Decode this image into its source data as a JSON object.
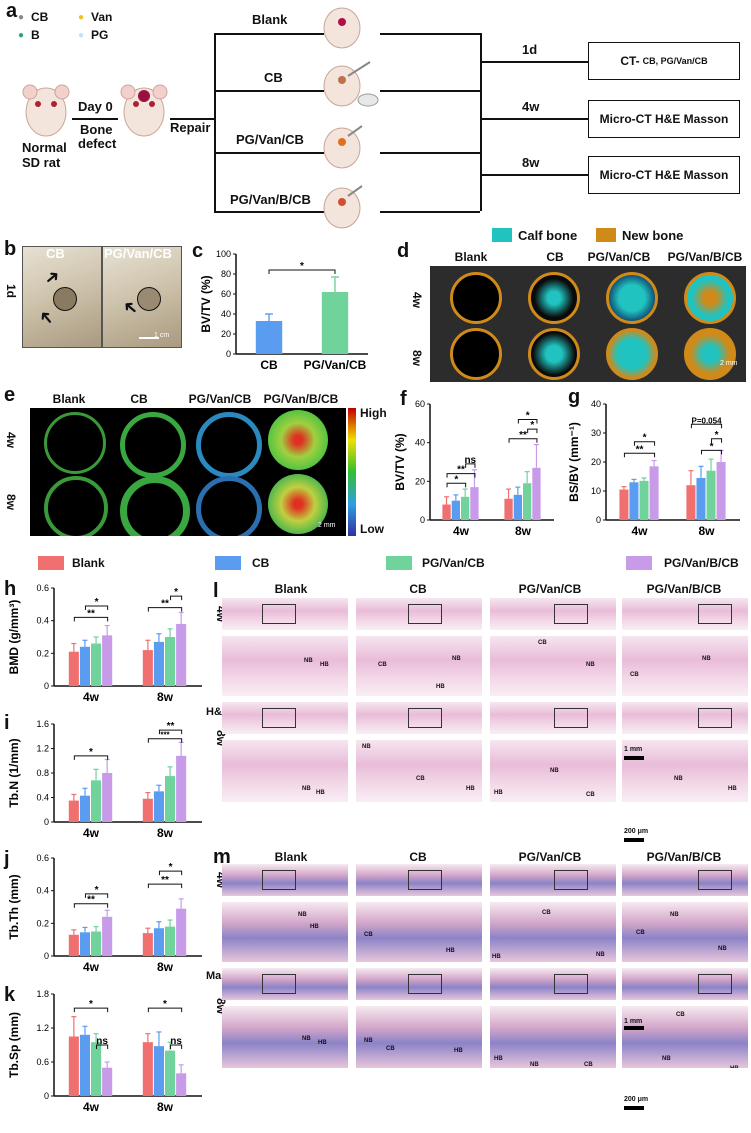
{
  "panels": {
    "a": "a",
    "b": "b",
    "c": "c",
    "d": "d",
    "e": "e",
    "f": "f",
    "g": "g",
    "h": "h",
    "i": "i",
    "j": "j",
    "k": "k",
    "l": "l",
    "m": "m"
  },
  "scheme": {
    "legend": [
      "CB",
      "Van",
      "B",
      "PG"
    ],
    "day0": "Day 0",
    "bone_defect_1": "Bone",
    "bone_defect_2": "defect",
    "normal_1": "Normal",
    "normal_2": "SD rat",
    "repair": "Repair",
    "groups": [
      "Blank",
      "CB",
      "PG/Van/CB",
      "PG/Van/B/CB"
    ],
    "times": [
      "1d",
      "4w",
      "8w"
    ],
    "box1_main": "CT-",
    "box1_sub": "CB, PG/Van/CB",
    "box2": "Micro-CT H&E Masson",
    "box3": "Micro-CT H&E Masson"
  },
  "panel_b": {
    "labels": [
      "CB",
      "PG/Van/CB"
    ],
    "row": "1d",
    "scale": "1 cm"
  },
  "panel_d": {
    "legend": [
      "Calf bone",
      "New bone"
    ],
    "legend_colors": [
      "#21c3c0",
      "#d08a1a"
    ],
    "cols": [
      "Blank",
      "CB",
      "PG/Van/CB",
      "PG/Van/B/CB"
    ],
    "rows": [
      "4w",
      "8w"
    ],
    "scale": "2 mm"
  },
  "panel_e": {
    "cols": [
      "Blank",
      "CB",
      "PG/Van/CB",
      "PG/Van/B/CB"
    ],
    "rows": [
      "4w",
      "8w"
    ],
    "high": "High",
    "low": "Low",
    "scale": "2 mm"
  },
  "group_legend": {
    "items": [
      "Blank",
      "CB",
      "PG/Van/CB",
      "PG/Van/B/CB"
    ],
    "colors": [
      "#f07070",
      "#5a9cf0",
      "#6fd39b",
      "#c79be8"
    ]
  },
  "panel_l": {
    "cols": [
      "Blank",
      "CB",
      "PG/Van/CB",
      "PG/Van/B/CB"
    ],
    "side": [
      "4w",
      "H&E",
      "8w"
    ],
    "scale1": "1 mm",
    "scale2": "200 μm",
    "tags": {
      "nb": "NB",
      "hb": "HB",
      "cb": "CB"
    }
  },
  "panel_m": {
    "cols": [
      "Blank",
      "CB",
      "PG/Van/CB",
      "PG/Van/B/CB"
    ],
    "side": [
      "4w",
      "Masson",
      "8w"
    ],
    "scale1": "1 mm",
    "scale2": "200 μm"
  },
  "chart_data": [
    {
      "id": "c",
      "type": "bar",
      "categories": [
        "CB",
        "PG/Van/CB"
      ],
      "values": [
        33,
        62
      ],
      "errors": [
        7,
        15
      ],
      "ylabel": "BV/TV (%)",
      "ylim": [
        0,
        100
      ],
      "yticks": [
        0,
        20,
        40,
        60,
        80,
        100
      ],
      "sig": [
        "*"
      ],
      "colors": [
        "#5a9cf0",
        "#6fd39b"
      ]
    },
    {
      "id": "f",
      "type": "bar",
      "categories": [
        "4w",
        "8w"
      ],
      "series": [
        {
          "values": [
            8,
            11
          ],
          "errors": [
            4,
            5
          ]
        },
        {
          "values": [
            10,
            13
          ],
          "errors": [
            3,
            4
          ]
        },
        {
          "values": [
            12,
            19
          ],
          "errors": [
            4,
            6
          ]
        },
        {
          "values": [
            17,
            27
          ],
          "errors": [
            9,
            12
          ]
        }
      ],
      "ylabel": "BV/TV (%)",
      "ylim": [
        0,
        60
      ],
      "yticks": [
        0,
        20,
        40,
        60
      ],
      "sig": [
        "*",
        "**",
        "ns",
        "*",
        "**",
        "*"
      ]
    },
    {
      "id": "g",
      "type": "bar",
      "categories": [
        "4w",
        "8w"
      ],
      "series": [
        {
          "values": [
            10.5,
            12
          ],
          "errors": [
            1,
            5
          ]
        },
        {
          "values": [
            13,
            14.5
          ],
          "errors": [
            1,
            4
          ]
        },
        {
          "values": [
            13.5,
            17
          ],
          "errors": [
            1,
            4
          ]
        },
        {
          "values": [
            18.5,
            20
          ],
          "errors": [
            2,
            4
          ]
        }
      ],
      "ylabel": "BS/BV (mm⁻¹)",
      "ylim": [
        0,
        40
      ],
      "yticks": [
        0,
        10,
        20,
        30,
        40
      ],
      "sig": [
        "**",
        "*",
        "*",
        "*",
        "P=0.054"
      ]
    },
    {
      "id": "h",
      "type": "bar",
      "categories": [
        "4w",
        "8w"
      ],
      "series": [
        {
          "values": [
            0.21,
            0.22
          ],
          "errors": [
            0.05,
            0.06
          ]
        },
        {
          "values": [
            0.24,
            0.27
          ],
          "errors": [
            0.04,
            0.05
          ]
        },
        {
          "values": [
            0.26,
            0.3
          ],
          "errors": [
            0.04,
            0.05
          ]
        },
        {
          "values": [
            0.31,
            0.38
          ],
          "errors": [
            0.06,
            0.07
          ]
        }
      ],
      "ylabel": "BMD (g/mm³)",
      "ylim": [
        0,
        0.6
      ],
      "yticks": [
        0,
        0.2,
        0.4,
        0.6
      ],
      "sig": [
        "**",
        "*",
        "**",
        "*"
      ]
    },
    {
      "id": "i",
      "type": "bar",
      "categories": [
        "4w",
        "8w"
      ],
      "series": [
        {
          "values": [
            0.35,
            0.38
          ],
          "errors": [
            0.1,
            0.1
          ]
        },
        {
          "values": [
            0.43,
            0.5
          ],
          "errors": [
            0.12,
            0.1
          ]
        },
        {
          "values": [
            0.68,
            0.75
          ],
          "errors": [
            0.18,
            0.15
          ]
        },
        {
          "values": [
            0.8,
            1.08
          ],
          "errors": [
            0.22,
            0.22
          ]
        }
      ],
      "ylabel": "Tb.N (1/mm)",
      "ylim": [
        0,
        1.6
      ],
      "yticks": [
        0,
        0.4,
        0.8,
        1.2,
        1.6
      ],
      "sig": [
        "*",
        "***",
        "**"
      ]
    },
    {
      "id": "j",
      "type": "bar",
      "categories": [
        "4w",
        "8w"
      ],
      "series": [
        {
          "values": [
            0.13,
            0.14
          ],
          "errors": [
            0.03,
            0.03
          ]
        },
        {
          "values": [
            0.145,
            0.17
          ],
          "errors": [
            0.03,
            0.04
          ]
        },
        {
          "values": [
            0.15,
            0.18
          ],
          "errors": [
            0.03,
            0.04
          ]
        },
        {
          "values": [
            0.24,
            0.29
          ],
          "errors": [
            0.04,
            0.06
          ]
        }
      ],
      "ylabel": "Tb.Th (mm)",
      "ylim": [
        0,
        0.6
      ],
      "yticks": [
        0,
        0.2,
        0.4,
        0.6
      ],
      "sig": [
        "**",
        "*",
        "**",
        "*"
      ]
    },
    {
      "id": "k",
      "type": "bar",
      "categories": [
        "4w",
        "8w"
      ],
      "series": [
        {
          "values": [
            1.05,
            0.95
          ],
          "errors": [
            0.35,
            0.15
          ]
        },
        {
          "values": [
            1.08,
            0.88
          ],
          "errors": [
            0.15,
            0.25
          ]
        },
        {
          "values": [
            0.95,
            0.8
          ],
          "errors": [
            0.15,
            0.15
          ]
        },
        {
          "values": [
            0.5,
            0.4
          ],
          "errors": [
            0.1,
            0.15
          ]
        }
      ],
      "ylabel": "Tb.Sp (mm)",
      "ylim": [
        0,
        1.8
      ],
      "yticks": [
        0,
        0.6,
        1.2,
        1.8
      ],
      "sig": [
        "*",
        "ns",
        "*",
        "ns"
      ]
    }
  ]
}
